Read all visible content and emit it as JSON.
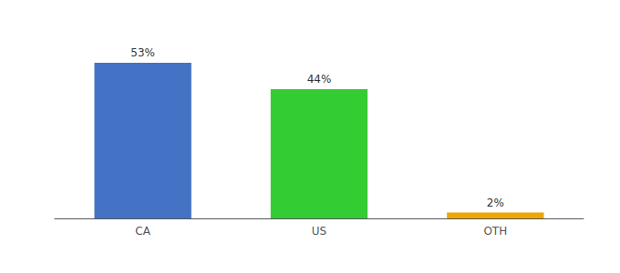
{
  "chart_data": {
    "type": "bar",
    "categories": [
      "CA",
      "US",
      "OTH"
    ],
    "values": [
      53,
      44,
      2
    ],
    "value_labels": [
      "53%",
      "44%",
      "2%"
    ],
    "colors": [
      "#4472c4",
      "#33cc33",
      "#f0a500"
    ],
    "ylim": [
      0,
      62
    ],
    "data_labels": true,
    "tick_labels": "x",
    "grid": false
  }
}
